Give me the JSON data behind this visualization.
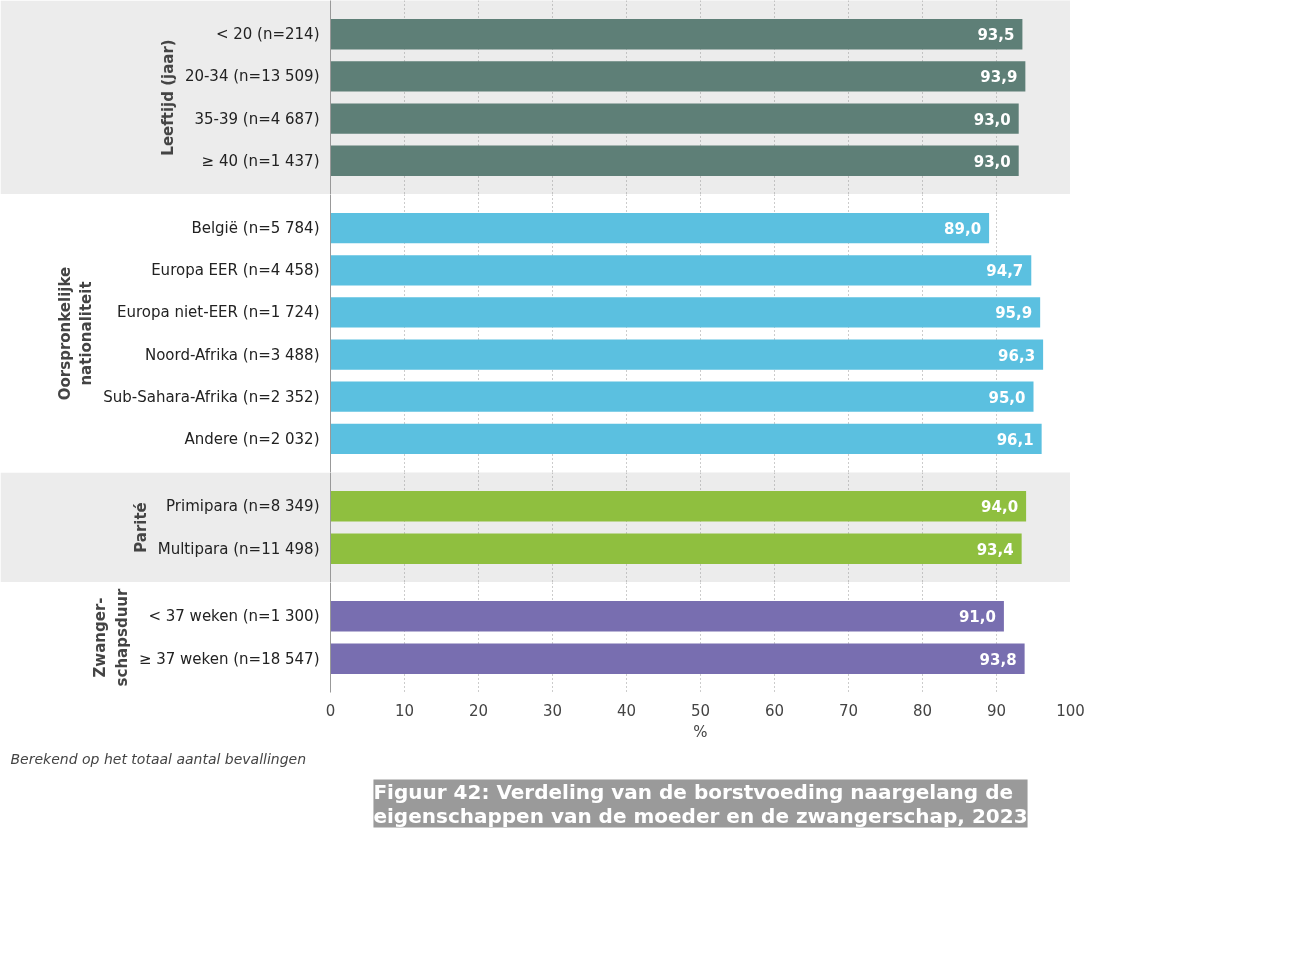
{
  "chart_data": [
    {
      "type": "bar",
      "orientation": "horizontal",
      "ylabel": "Leeftijd (jaar)",
      "categories": [
        "< 20 (n=214)",
        "20-34 (n=13 509)",
        "35-39 (n=4 687)",
        "≥ 40 (n=1 437)"
      ],
      "values": [
        93.5,
        93.9,
        93.0,
        93.0
      ],
      "value_labels": [
        "93,5",
        "93,9",
        "93,0",
        "93,0"
      ],
      "color": "#5e7f77",
      "xlim": [
        0,
        100
      ],
      "xticks": [
        0,
        10,
        20,
        30,
        40,
        50,
        60,
        70,
        80,
        90,
        100
      ],
      "grid": "x",
      "tick_labels": "y"
    },
    {
      "type": "bar",
      "orientation": "horizontal",
      "ylabel": "Oorspronkelijke\nnationaliteit",
      "categories": [
        "België (n=5 784)",
        "Europa EER (n=4 458)",
        "Europa niet-EER (n=1 724)",
        "Noord-Afrika (n=3 488)",
        "Sub-Sahara-Afrika (n=2 352)",
        "Andere (n=2 032)"
      ],
      "values": [
        89.0,
        94.7,
        95.9,
        96.3,
        95.0,
        96.1
      ],
      "value_labels": [
        "89,0",
        "94,7",
        "95,9",
        "96,3",
        "95,0",
        "96,1"
      ],
      "color": "#5bc0e0",
      "xlim": [
        0,
        100
      ],
      "xticks": [
        0,
        10,
        20,
        30,
        40,
        50,
        60,
        70,
        80,
        90,
        100
      ],
      "grid": "x",
      "tick_labels": "y"
    },
    {
      "type": "bar",
      "orientation": "horizontal",
      "ylabel": "Parité",
      "categories": [
        "Primipara (n=8 349)",
        "Multipara (n=11 498)"
      ],
      "values": [
        94.0,
        93.4
      ],
      "value_labels": [
        "94,0",
        "93,4"
      ],
      "color": "#8fbf3f",
      "xlim": [
        0,
        100
      ],
      "xticks": [
        0,
        10,
        20,
        30,
        40,
        50,
        60,
        70,
        80,
        90,
        100
      ],
      "grid": "x",
      "tick_labels": "y"
    },
    {
      "type": "bar",
      "orientation": "horizontal",
      "ylabel": "Zwanger-\nschapsduur",
      "categories": [
        "< 37 weken (n=1 300)",
        "≥ 37 weken (n=18 547)"
      ],
      "values": [
        91.0,
        93.8
      ],
      "value_labels": [
        "91,0",
        "93,8"
      ],
      "color": "#786eb0",
      "xlim": [
        0,
        100
      ],
      "xticks": [
        0,
        10,
        20,
        30,
        40,
        50,
        60,
        70,
        80,
        90,
        100
      ],
      "xlabel": "%",
      "grid": "x",
      "annotations": [
        "Berekend op het totaal aantal bevallingen"
      ],
      "title": "Figuur 42: Verdeling van de borstvoeding naargelang de\neigenschappen van de moeder en de zwangerschap, 2023"
    }
  ]
}
